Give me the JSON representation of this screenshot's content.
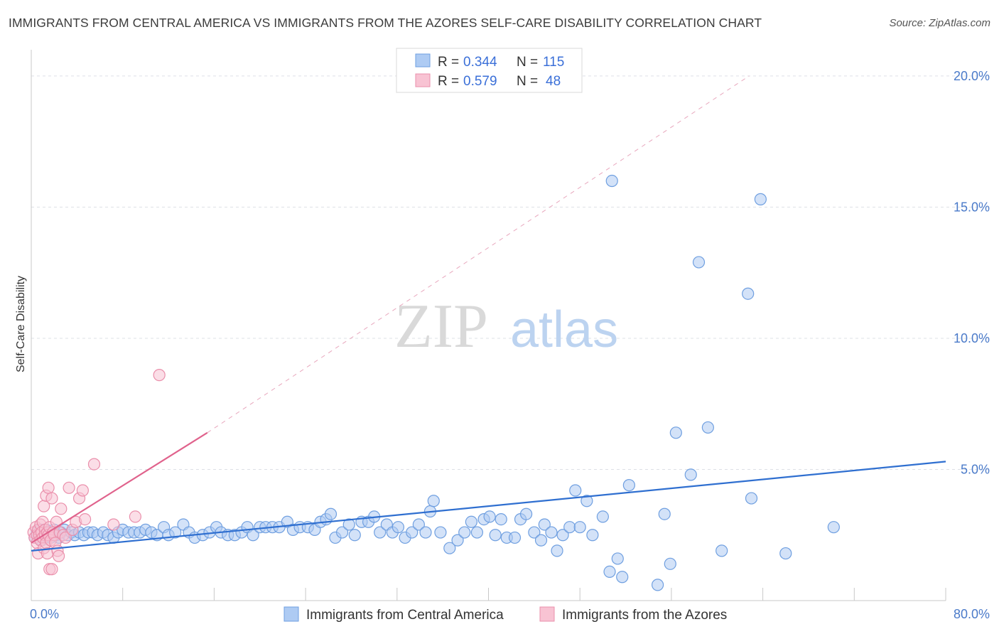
{
  "title": "IMMIGRANTS FROM CENTRAL AMERICA VS IMMIGRANTS FROM THE AZORES SELF-CARE DISABILITY CORRELATION CHART",
  "source": "Source: ZipAtlas.com",
  "watermark": {
    "zip": "ZIP",
    "atlas": "atlas"
  },
  "colors": {
    "blue_fill": "#aecbf3",
    "blue_stroke": "#6f9fe0",
    "blue_line": "#2f6fd0",
    "pink_fill": "#f8c3d3",
    "pink_stroke": "#ea8fab",
    "pink_line": "#e0628c",
    "grid": "#dde0e6",
    "tick_label": "#4a7ac9"
  },
  "legend_stats": [
    {
      "r_label": "R =",
      "r_value": "0.344",
      "n_label": "N =",
      "n_value": "115"
    },
    {
      "r_label": "R =",
      "r_value": "0.579",
      "n_label": "N =",
      "n_value": "48"
    }
  ],
  "chart_data": {
    "type": "scatter",
    "ylabel": "Self-Care Disability",
    "xlabel": "",
    "xlim": [
      0,
      80
    ],
    "ylim": [
      0,
      21
    ],
    "x_tick_labels": [
      {
        "value": 0,
        "label": "0.0%"
      },
      {
        "value": 80,
        "label": "80.0%"
      }
    ],
    "y_tick_labels": [
      {
        "value": 5,
        "label": "5.0%"
      },
      {
        "value": 10,
        "label": "10.0%"
      },
      {
        "value": 15,
        "label": "15.0%"
      },
      {
        "value": 20,
        "label": "20.0%"
      }
    ],
    "grid": true,
    "legend_position": "bottom",
    "series": [
      {
        "name": "Immigrants from Central America",
        "color": "#6f9fe0",
        "trend": {
          "x": [
            0,
            80
          ],
          "y": [
            1.9,
            5.3
          ],
          "style": "solid"
        },
        "points": [
          [
            0.3,
            2.4
          ],
          [
            0.5,
            2.6
          ],
          [
            0.6,
            2.5
          ],
          [
            0.8,
            2.7
          ],
          [
            0.9,
            2.3
          ],
          [
            1.0,
            2.6
          ],
          [
            1.1,
            2.5
          ],
          [
            1.2,
            2.4
          ],
          [
            1.3,
            2.7
          ],
          [
            1.4,
            2.5
          ],
          [
            1.6,
            2.6
          ],
          [
            1.7,
            2.4
          ],
          [
            1.9,
            2.5
          ],
          [
            2.0,
            2.7
          ],
          [
            2.2,
            2.5
          ],
          [
            2.4,
            2.4
          ],
          [
            2.6,
            2.6
          ],
          [
            2.9,
            2.7
          ],
          [
            3.2,
            2.5
          ],
          [
            3.5,
            2.6
          ],
          [
            3.8,
            2.5
          ],
          [
            4.2,
            2.6
          ],
          [
            4.6,
            2.5
          ],
          [
            5.0,
            2.6
          ],
          [
            5.4,
            2.6
          ],
          [
            5.8,
            2.5
          ],
          [
            6.3,
            2.6
          ],
          [
            6.7,
            2.5
          ],
          [
            7.2,
            2.4
          ],
          [
            7.6,
            2.6
          ],
          [
            8.0,
            2.7
          ],
          [
            8.5,
            2.6
          ],
          [
            9.0,
            2.6
          ],
          [
            9.5,
            2.6
          ],
          [
            10.0,
            2.7
          ],
          [
            10.5,
            2.6
          ],
          [
            11.0,
            2.5
          ],
          [
            11.6,
            2.8
          ],
          [
            12.0,
            2.5
          ],
          [
            12.6,
            2.6
          ],
          [
            13.3,
            2.9
          ],
          [
            13.8,
            2.6
          ],
          [
            14.3,
            2.4
          ],
          [
            15.0,
            2.5
          ],
          [
            15.6,
            2.6
          ],
          [
            16.2,
            2.8
          ],
          [
            16.6,
            2.6
          ],
          [
            17.2,
            2.5
          ],
          [
            17.8,
            2.5
          ],
          [
            18.4,
            2.6
          ],
          [
            18.9,
            2.8
          ],
          [
            19.4,
            2.5
          ],
          [
            20.0,
            2.8
          ],
          [
            20.5,
            2.8
          ],
          [
            21.1,
            2.8
          ],
          [
            21.7,
            2.8
          ],
          [
            22.4,
            3.0
          ],
          [
            22.9,
            2.7
          ],
          [
            23.5,
            2.8
          ],
          [
            24.2,
            2.8
          ],
          [
            24.8,
            2.7
          ],
          [
            25.3,
            3.0
          ],
          [
            25.8,
            3.1
          ],
          [
            26.2,
            3.3
          ],
          [
            26.6,
            2.4
          ],
          [
            27.2,
            2.6
          ],
          [
            27.8,
            2.9
          ],
          [
            28.3,
            2.5
          ],
          [
            28.9,
            3.0
          ],
          [
            29.5,
            3.0
          ],
          [
            30.0,
            3.2
          ],
          [
            30.5,
            2.6
          ],
          [
            31.1,
            2.9
          ],
          [
            31.6,
            2.6
          ],
          [
            32.1,
            2.8
          ],
          [
            32.7,
            2.4
          ],
          [
            33.3,
            2.6
          ],
          [
            33.9,
            2.9
          ],
          [
            34.5,
            2.6
          ],
          [
            34.9,
            3.4
          ],
          [
            35.2,
            3.8
          ],
          [
            35.8,
            2.6
          ],
          [
            36.6,
            2.0
          ],
          [
            37.3,
            2.3
          ],
          [
            37.9,
            2.6
          ],
          [
            38.5,
            3.0
          ],
          [
            39.0,
            2.6
          ],
          [
            39.6,
            3.1
          ],
          [
            40.1,
            3.2
          ],
          [
            40.6,
            2.5
          ],
          [
            41.1,
            3.1
          ],
          [
            41.6,
            2.4
          ],
          [
            42.3,
            2.4
          ],
          [
            42.8,
            3.1
          ],
          [
            43.3,
            3.3
          ],
          [
            44.0,
            2.6
          ],
          [
            44.6,
            2.3
          ],
          [
            44.9,
            2.9
          ],
          [
            45.5,
            2.6
          ],
          [
            46.0,
            1.9
          ],
          [
            46.5,
            2.5
          ],
          [
            47.1,
            2.8
          ],
          [
            47.6,
            4.2
          ],
          [
            48.0,
            2.8
          ],
          [
            48.6,
            3.8
          ],
          [
            49.1,
            2.5
          ],
          [
            50.0,
            3.2
          ],
          [
            50.6,
            1.1
          ],
          [
            51.3,
            1.6
          ],
          [
            51.7,
            0.9
          ],
          [
            52.3,
            4.4
          ],
          [
            55.4,
            3.3
          ],
          [
            56.4,
            6.4
          ],
          [
            57.7,
            4.8
          ],
          [
            59.2,
            6.6
          ],
          [
            60.4,
            1.9
          ],
          [
            63.0,
            3.9
          ],
          [
            66.0,
            1.8
          ],
          [
            70.2,
            2.8
          ],
          [
            50.8,
            16.0
          ],
          [
            54.8,
            0.6
          ],
          [
            58.4,
            12.9
          ],
          [
            62.7,
            11.7
          ],
          [
            63.8,
            15.3
          ],
          [
            55.9,
            1.4
          ]
        ]
      },
      {
        "name": "Immigrants from the Azores",
        "color": "#ea8fab",
        "trend": {
          "x": [
            0,
            15.4
          ],
          "y": [
            2.2,
            6.4
          ],
          "style": "solid",
          "extension": {
            "x": [
              15.4,
              62.8
            ],
            "y": [
              6.4,
              20.0
            ],
            "style": "dashed"
          }
        },
        "points": [
          [
            0.2,
            2.6
          ],
          [
            0.3,
            2.4
          ],
          [
            0.4,
            2.8
          ],
          [
            0.5,
            2.5
          ],
          [
            0.5,
            2.2
          ],
          [
            0.6,
            2.7
          ],
          [
            0.6,
            1.8
          ],
          [
            0.7,
            2.5
          ],
          [
            0.8,
            2.9
          ],
          [
            0.8,
            2.3
          ],
          [
            0.9,
            2.6
          ],
          [
            1.0,
            3.0
          ],
          [
            1.0,
            2.4
          ],
          [
            1.1,
            3.6
          ],
          [
            1.1,
            2.0
          ],
          [
            1.2,
            2.7
          ],
          [
            1.2,
            2.5
          ],
          [
            1.3,
            4.0
          ],
          [
            1.3,
            2.2
          ],
          [
            1.4,
            2.6
          ],
          [
            1.4,
            1.8
          ],
          [
            1.5,
            4.3
          ],
          [
            1.5,
            2.5
          ],
          [
            1.6,
            2.8
          ],
          [
            1.6,
            1.2
          ],
          [
            1.7,
            2.3
          ],
          [
            1.8,
            3.9
          ],
          [
            1.8,
            1.2
          ],
          [
            1.9,
            2.6
          ],
          [
            2.0,
            2.5
          ],
          [
            2.1,
            2.2
          ],
          [
            2.2,
            3.0
          ],
          [
            2.3,
            1.9
          ],
          [
            2.4,
            1.7
          ],
          [
            2.5,
            2.6
          ],
          [
            2.6,
            3.5
          ],
          [
            2.8,
            2.5
          ],
          [
            3.0,
            2.4
          ],
          [
            3.3,
            4.3
          ],
          [
            3.6,
            2.7
          ],
          [
            3.9,
            3.0
          ],
          [
            4.2,
            3.9
          ],
          [
            4.5,
            4.2
          ],
          [
            4.7,
            3.1
          ],
          [
            5.5,
            5.2
          ],
          [
            7.2,
            2.9
          ],
          [
            9.1,
            3.2
          ],
          [
            11.2,
            8.6
          ]
        ]
      }
    ]
  }
}
